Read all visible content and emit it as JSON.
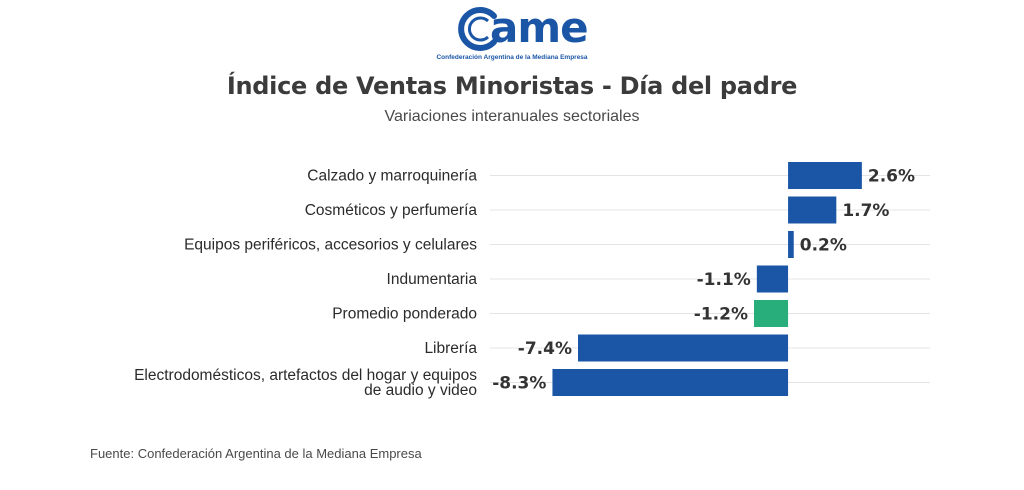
{
  "logo": {
    "word": "ame",
    "tagline": "Confederación Argentina de la Mediana Empresa"
  },
  "header": {
    "title": "Índice de Ventas Minoristas - Día del padre",
    "subtitle": "Variaciones interanuales sectoriales"
  },
  "colors": {
    "bar": "#1b56a6",
    "highlight": "#27ae7a",
    "grid": "#e4e4e4",
    "label": "#2b2b2b",
    "value": "#333333"
  },
  "chart_data": {
    "type": "bar",
    "orientation": "horizontal",
    "categories": [
      "Calzado y marroquinería",
      "Cosméticos y perfumería",
      "Equipos periféricos, accesorios y celulares",
      "Indumentaria",
      "Promedio ponderado",
      "Librería",
      "Electrodomésticos, artefactos del hogar y equipos de audio y video"
    ],
    "category_lines": [
      [
        "Calzado y marroquinería"
      ],
      [
        "Cosméticos y perfumería"
      ],
      [
        "Equipos periféricos, accesorios y celulares"
      ],
      [
        "Indumentaria"
      ],
      [
        "Promedio ponderado"
      ],
      [
        "Librería"
      ],
      [
        "Electrodomésticos, artefactos del hogar y equipos",
        "de audio y video"
      ]
    ],
    "values": [
      2.6,
      1.7,
      0.2,
      -1.1,
      -1.2,
      -7.4,
      -8.3
    ],
    "value_labels": [
      "2.6%",
      "1.7%",
      "0.2%",
      "-1.1%",
      "-1.2%",
      "-7.4%",
      "-8.3%"
    ],
    "highlight_index": 4,
    "xlim": [
      -10.5,
      5
    ],
    "grid": true
  },
  "footer": {
    "source": "Fuente: Confederación Argentina de la Mediana Empresa"
  }
}
